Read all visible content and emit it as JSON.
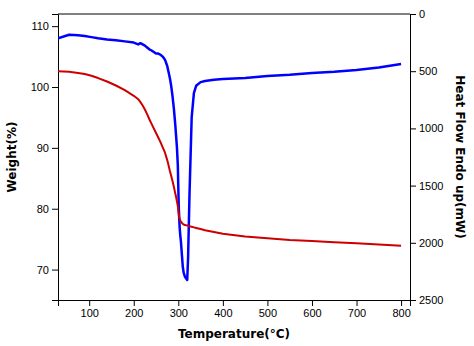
{
  "chart_data": {
    "type": "line",
    "x_label": "Temperature(°C)",
    "y_label": "Weight(%)",
    "y2_label": "Heat Flow Endo up(mW)",
    "x": [
      30,
      55,
      75,
      90,
      105,
      120,
      140,
      160,
      180,
      200,
      210,
      215,
      220,
      225,
      230,
      235,
      240,
      250,
      255,
      260,
      265,
      270,
      275,
      278,
      281,
      284,
      287,
      290,
      293,
      295,
      297,
      299,
      300,
      301,
      302,
      303,
      304,
      305,
      306,
      307,
      308,
      309,
      310,
      312,
      315,
      318,
      320,
      322,
      325,
      330,
      335,
      340,
      350,
      360,
      380,
      400,
      450,
      500,
      550,
      600,
      650,
      700,
      750,
      800
    ],
    "series": [
      {
        "color": "#0000FF",
        "values": [
          108.0,
          108.6,
          108.5,
          108.4,
          108.2,
          108.0,
          107.8,
          107.7,
          107.5,
          107.3,
          107.0,
          107.2,
          107.0,
          106.8,
          106.5,
          106.2,
          106.0,
          105.5,
          105.5,
          105.3,
          105.0,
          104.5,
          103.5,
          102.5,
          101.5,
          100.2,
          98.5,
          96.5,
          94.0,
          92.0,
          90.0,
          87.0,
          83.5,
          80.5,
          78.5,
          77.0,
          76.0,
          75.2,
          74.5,
          73.5,
          72.5,
          71.5,
          70.5,
          69.5,
          68.8,
          68.5,
          68.3,
          72.0,
          82.0,
          95.0,
          99.0,
          100.2,
          100.8,
          101.0,
          101.2,
          101.3,
          101.5,
          101.8,
          102.0,
          102.3,
          102.5,
          102.8,
          103.2,
          103.8
        ]
      },
      {
        "color": "#CC0000",
        "axis": "y2",
        "values": [
          500,
          505,
          515,
          525,
          540,
          560,
          590,
          625,
          665,
          715,
          745,
          770,
          800,
          835,
          875,
          920,
          960,
          1040,
          1080,
          1120,
          1165,
          1210,
          1275,
          1320,
          1370,
          1415,
          1460,
          1510,
          1565,
          1600,
          1640,
          1680,
          1720,
          1750,
          1775,
          1790,
          1800,
          1810,
          1815,
          1820,
          1825,
          1830,
          1835,
          1840,
          1845,
          1847,
          1848,
          1850,
          1855,
          1860,
          1865,
          1870,
          1880,
          1890,
          1905,
          1920,
          1945,
          1960,
          1975,
          1985,
          1995,
          2005,
          2015,
          2025
        ]
      }
    ],
    "xlim": [
      30,
      820
    ],
    "xticks": [
      100,
      200,
      300,
      400,
      500,
      600,
      700,
      800
    ],
    "ylim": [
      65,
      112
    ],
    "yticks": [
      70,
      80,
      90,
      100,
      110
    ],
    "y2lim": [
      2500,
      0
    ],
    "y2ticks": [
      0,
      500,
      1000,
      1500,
      2000,
      2500
    ]
  }
}
